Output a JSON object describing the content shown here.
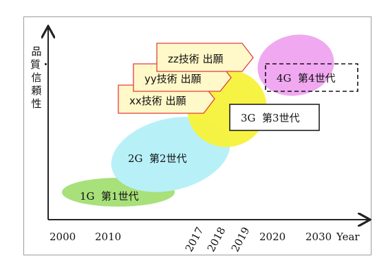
{
  "y_axis_label": "品質・信頼性",
  "x_axis": {
    "ticks_straight": [
      "2000",
      "2010",
      "2020",
      "2030"
    ],
    "ticks_rotated": [
      "2017",
      "2018",
      "2019"
    ],
    "unit": "Year"
  },
  "generations": [
    {
      "label": "1G  第1世代",
      "color": "#a8e07a"
    },
    {
      "label": "2G  第2世代",
      "color": "#b8f0f8"
    },
    {
      "label": "3G  第3世代",
      "color": "#f7f23a"
    },
    {
      "label": "4G  第4世代",
      "color": "#f0a8f0",
      "frame": "dashed"
    }
  ],
  "applications": [
    {
      "label": "xx技術 出願"
    },
    {
      "label": "yy技術 出願"
    },
    {
      "label": "zz技術 出願"
    }
  ],
  "colors": {
    "arrow_box_fill": "#fff8c8",
    "arrow_box_stroke": "#e23c3c",
    "axis": "#222222"
  }
}
